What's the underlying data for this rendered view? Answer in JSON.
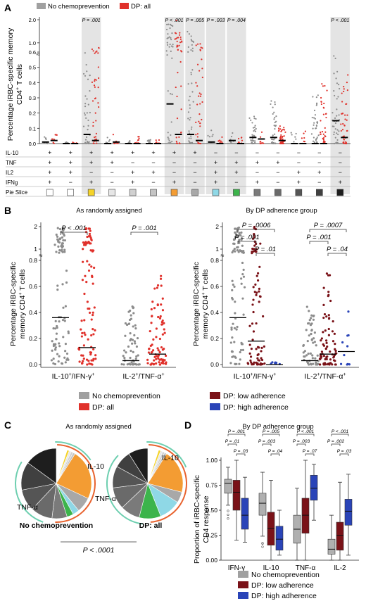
{
  "figure": {
    "panel_labels": [
      "A",
      "B",
      "C",
      "D"
    ]
  },
  "panel_a": {
    "legend": [
      "No chemoprevention",
      "DP: all"
    ],
    "ylabel_line1": "Percentage iRBC-specific memory",
    "ylabel_line2": "CD4",
    "ylabel_line2_sup": "+",
    "ylabel_line2_rest": " T cells",
    "y_ticks": [
      "0.0",
      "0.1",
      "0.2",
      "0.3",
      "0.4",
      "0.5",
      "0.6",
      "1.0",
      "2.0"
    ],
    "pvalues": [
      "P = .001",
      "P < .001",
      "P = .005",
      "P = .003",
      "P = .004",
      "P < .001"
    ],
    "row_labels": [
      "IL-10",
      "TNF",
      "IL2",
      "IFNg",
      "Pie Slice"
    ],
    "combos": [
      {
        "il10": "+",
        "tnf": "+",
        "il2": "+",
        "ifng": "+",
        "slice": "#ffffff"
      },
      {
        "il10": "+",
        "tnf": "+",
        "il2": "+",
        "ifng": "−",
        "slice": "#ffffff"
      },
      {
        "il10": "+",
        "tnf": "+",
        "il2": "−",
        "ifng": "+",
        "slice": "#f5d328"
      },
      {
        "il10": "+",
        "tnf": "+",
        "il2": "−",
        "ifng": "−",
        "slice": "#e6e6e6"
      },
      {
        "il10": "+",
        "tnf": "−",
        "il2": "+",
        "ifng": "+",
        "slice": "#d0d0d0"
      },
      {
        "il10": "+",
        "tnf": "−",
        "il2": "+",
        "ifng": "−",
        "slice": "#c4c4c4"
      },
      {
        "il10": "+",
        "tnf": "−",
        "il2": "−",
        "ifng": "+",
        "slice": "#f39c33"
      },
      {
        "il10": "+",
        "tnf": "−",
        "il2": "−",
        "ifng": "−",
        "slice": "#a8a8a8"
      },
      {
        "il10": "−",
        "tnf": "+",
        "il2": "+",
        "ifng": "+",
        "slice": "#8fd8e6"
      },
      {
        "il10": "−",
        "tnf": "+",
        "il2": "+",
        "ifng": "−",
        "slice": "#3cb44b"
      },
      {
        "il10": "−",
        "tnf": "+",
        "il2": "−",
        "ifng": "+",
        "slice": "#7a7a7a"
      },
      {
        "il10": "−",
        "tnf": "+",
        "il2": "−",
        "ifng": "−",
        "slice": "#6a6a6a"
      },
      {
        "il10": "−",
        "tnf": "−",
        "il2": "+",
        "ifng": "+",
        "slice": "#555555"
      },
      {
        "il10": "−",
        "tnf": "−",
        "il2": "+",
        "ifng": "−",
        "slice": "#404040"
      },
      {
        "il10": "−",
        "tnf": "−",
        "il2": "−",
        "ifng": "+",
        "slice": "#1e1e1e"
      }
    ]
  },
  "panel_b": {
    "left_title": "As randomly assigned",
    "right_title": "By DP adherence group",
    "ylabel_line1": "Percentage iRBC-specific",
    "ylabel_line2": "memory CD4",
    "ylabel_line2_sup": "+",
    "ylabel_line2_rest": " T cells",
    "y_ticks": [
      "0.0",
      "0.2",
      "0.4",
      "0.6",
      "0.8",
      "1",
      "2"
    ],
    "cat1": "IL-10",
    "cat1_sup1": "+",
    "cat1_mid": "/IFN-γ",
    "cat1_sup2": "+",
    "cat2": "IL-2",
    "cat2_sup1": "+",
    "cat2_mid": "/TNF-α",
    "cat2_sup2": "+",
    "left_pvalues": [
      "P < .001",
      "P = .001"
    ],
    "right_pvalues": [
      "P = .0006",
      "P = .001",
      "P = .01",
      "P = .0007",
      "P = .001",
      "P = .04"
    ],
    "legend": [
      "No chemoprevention",
      "DP: all",
      "DP: low adherence",
      "DP: high adherence"
    ]
  },
  "panel_c": {
    "title": "As randomly assigned",
    "pie1_label": "No chemoprevention",
    "pie2_label": "DP: all",
    "arc_labels": [
      "IL-10",
      "TNF-α"
    ],
    "pvalue": "P < .0001"
  },
  "panel_d": {
    "title": "By DP adherence group",
    "ylabel_line1": "Proportion of iRBC-specific",
    "ylabel_line2": "CD4 response",
    "y_ticks": [
      "0.00",
      "0.25",
      "0.50",
      "0.75",
      "1.00"
    ],
    "pvalues": [
      "P = .001",
      "P = .01",
      "P = .03",
      "P = .005",
      "P = .003",
      "P = .04",
      "P < .001",
      "P = .003",
      "P = .07",
      "P < .001",
      "P = .002",
      "P = .03"
    ],
    "legend": [
      "No chemoprevention",
      "DP: low adherence",
      "DP: high adherence"
    ]
  },
  "colors": {
    "no_chemo": "#a0a0a0",
    "dp_all": "#e0312b",
    "dp_low": "#7a1218",
    "dp_high": "#2a44b8",
    "teal": "#6ecfb0",
    "orange_red": "#e8632f",
    "highlight": "#e4e4e4"
  },
  "chart_data": [
    {
      "panel": "A",
      "type": "scatter",
      "title": "",
      "ylabel": "Percentage iRBC-specific memory CD4+ T cells",
      "ylim": [
        0,
        2.2
      ],
      "series": [
        {
          "name": "No chemoprevention",
          "medians": [
            0.01,
            0.0,
            0.06,
            0.0,
            0.0,
            0.0,
            0.26,
            0.06,
            0.01,
            0.02,
            0.04,
            0.04,
            0.0,
            0.0,
            0.15
          ]
        },
        {
          "name": "DP: all",
          "medians": [
            0.02,
            0.0,
            0.02,
            0.01,
            0.0,
            0.0,
            0.06,
            0.02,
            0.0,
            0.0,
            0.03,
            0.02,
            0.0,
            0.0,
            0.04
          ]
        }
      ],
      "highlighted_columns": [
        3,
        7,
        8,
        9,
        10,
        15
      ]
    },
    {
      "panel": "B-left",
      "type": "scatter",
      "categories": [
        "IL-10+/IFN-γ+",
        "IL-2+/TNF-α+"
      ],
      "series": [
        {
          "name": "No chemoprevention",
          "medians": [
            0.36,
            0.03
          ]
        },
        {
          "name": "DP: all",
          "medians": [
            0.13,
            0.08
          ]
        }
      ]
    },
    {
      "panel": "B-right",
      "type": "scatter",
      "categories": [
        "IL-10+/IFN-γ+",
        "IL-2+/TNF-α+"
      ],
      "series": [
        {
          "name": "No chemoprevention",
          "medians": [
            0.36,
            0.03
          ]
        },
        {
          "name": "DP: low adherence",
          "medians": [
            0.18,
            0.08
          ]
        },
        {
          "name": "DP: high adherence",
          "medians": [
            0.0,
            0.1
          ]
        }
      ]
    },
    {
      "panel": "C",
      "type": "pie",
      "series": [
        {
          "name": "No chemoprevention",
          "values": [
            4,
            1,
            1,
            1,
            1,
            1,
            23,
            7,
            3,
            3,
            7,
            10,
            10,
            13,
            15
          ]
        },
        {
          "name": "DP: all",
          "values": [
            4,
            1,
            1,
            1,
            1,
            1,
            20,
            5,
            10,
            10,
            9,
            10,
            10,
            8,
            9
          ]
        }
      ]
    },
    {
      "panel": "D",
      "type": "box",
      "categories": [
        "IFN-γ",
        "IL-10",
        "TNF-α",
        "IL-2"
      ],
      "ylim": [
        0,
        1
      ],
      "series": [
        {
          "name": "No chemoprevention",
          "boxes": [
            [
              0.55,
              0.67,
              0.77,
              0.81,
              0.93
            ],
            [
              0.24,
              0.45,
              0.57,
              0.67,
              0.88
            ],
            [
              0.0,
              0.17,
              0.31,
              0.45,
              0.72
            ],
            [
              0.0,
              0.06,
              0.11,
              0.21,
              0.45
            ]
          ]
        },
        {
          "name": "DP: low adherence",
          "boxes": [
            [
              0.2,
              0.5,
              0.68,
              0.8,
              1.0
            ],
            [
              0.0,
              0.15,
              0.32,
              0.48,
              0.8
            ],
            [
              0.0,
              0.27,
              0.45,
              0.62,
              1.0
            ],
            [
              0.0,
              0.1,
              0.25,
              0.38,
              0.78
            ]
          ]
        },
        {
          "name": "DP: high adherence",
          "boxes": [
            [
              0.18,
              0.31,
              0.45,
              0.62,
              0.83
            ],
            [
              0.05,
              0.1,
              0.21,
              0.34,
              0.5
            ],
            [
              0.4,
              0.6,
              0.72,
              0.85,
              0.96
            ],
            [
              0.05,
              0.35,
              0.49,
              0.61,
              0.86
            ]
          ]
        }
      ]
    }
  ]
}
